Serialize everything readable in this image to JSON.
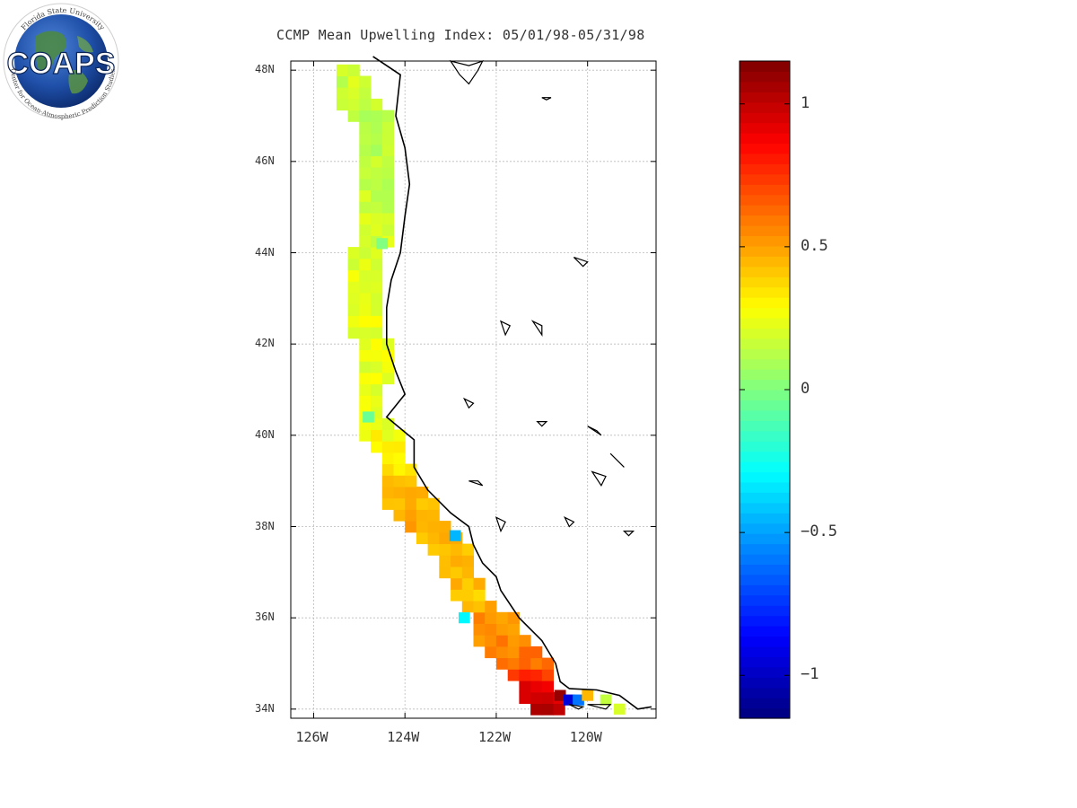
{
  "title": "CCMP Mean Upwelling Index: 05/01/98-05/31/98",
  "logo": {
    "text": "COAPS",
    "ring_top": "Florida State University",
    "ring_bottom": "Center for Ocean-Atmospheric Prediction Studies",
    "icon": "globe-icon"
  },
  "map": {
    "lat_range": [
      33.8,
      48.2
    ],
    "lon_range": [
      -126.5,
      -118.5
    ],
    "lat_ticks": [
      {
        "value": 34,
        "label": "34N"
      },
      {
        "value": 36,
        "label": "36N"
      },
      {
        "value": 38,
        "label": "38N"
      },
      {
        "value": 40,
        "label": "40N"
      },
      {
        "value": 42,
        "label": "42N"
      },
      {
        "value": 44,
        "label": "44N"
      },
      {
        "value": 46,
        "label": "46N"
      },
      {
        "value": 48,
        "label": "48N"
      }
    ],
    "lon_ticks": [
      {
        "value": -126,
        "label": "126W"
      },
      {
        "value": -124,
        "label": "124W"
      },
      {
        "value": -122,
        "label": "122W"
      },
      {
        "value": -120,
        "label": "120W"
      }
    ],
    "grid": true,
    "colors": {
      "coast": "#000000",
      "grid": "#bbbbbb",
      "frame": "#000000"
    }
  },
  "chart_data": {
    "type": "heatmap",
    "title": "CCMP Mean Upwelling Index: 05/01/98-05/31/98",
    "colorbar": {
      "range": [
        -1.15,
        1.15
      ],
      "ticks": [
        {
          "value": 1,
          "label": "1"
        },
        {
          "value": 0.5,
          "label": "0.5"
        },
        {
          "value": 0,
          "label": "0"
        },
        {
          "value": -0.5,
          "label": "−0.5"
        },
        {
          "value": -1,
          "label": "−1"
        }
      ],
      "colormap": "jet"
    },
    "coastal_band": [
      {
        "lat": 48.0,
        "lon_w": -125.6,
        "lon_e": -124.9,
        "value": 0.18
      },
      {
        "lat": 47.5,
        "lon_w": -125.6,
        "lon_e": -124.7,
        "value": 0.16
      },
      {
        "lat": 47.0,
        "lon_w": -125.2,
        "lon_e": -124.2,
        "value": 0.1
      },
      {
        "lat": 46.5,
        "lon_w": -125.0,
        "lon_e": -124.2,
        "value": 0.12
      },
      {
        "lat": 46.0,
        "lon_w": -124.9,
        "lon_e": -124.2,
        "value": 0.14
      },
      {
        "lat": 45.5,
        "lon_w": -124.9,
        "lon_e": -124.2,
        "value": 0.16
      },
      {
        "lat": 45.0,
        "lon_w": -124.9,
        "lon_e": -124.3,
        "value": 0.17
      },
      {
        "lat": 44.5,
        "lon_w": -124.9,
        "lon_e": -124.3,
        "value": 0.19
      },
      {
        "lat": 44.0,
        "lon_w": -125.2,
        "lon_e": -124.4,
        "value": 0.22
      },
      {
        "lat": 43.5,
        "lon_w": -125.3,
        "lon_e": -124.5,
        "value": 0.24
      },
      {
        "lat": 43.0,
        "lon_w": -125.3,
        "lon_e": -124.5,
        "value": 0.24
      },
      {
        "lat": 42.5,
        "lon_w": -125.3,
        "lon_e": -124.5,
        "value": 0.25
      },
      {
        "lat": 42.0,
        "lon_w": -125.0,
        "lon_e": -124.3,
        "value": 0.25
      },
      {
        "lat": 41.5,
        "lon_w": -125.0,
        "lon_e": -124.3,
        "value": 0.24
      },
      {
        "lat": 41.0,
        "lon_w": -125.0,
        "lon_e": -124.4,
        "value": 0.24
      },
      {
        "lat": 40.5,
        "lon_w": -125.0,
        "lon_e": -124.4,
        "value": 0.22
      },
      {
        "lat": 40.0,
        "lon_w": -125.0,
        "lon_e": -124.1,
        "value": 0.28
      },
      {
        "lat": 39.5,
        "lon_w": -124.6,
        "lon_e": -123.9,
        "value": 0.33
      },
      {
        "lat": 39.0,
        "lon_w": -124.5,
        "lon_e": -123.8,
        "value": 0.4
      },
      {
        "lat": 38.5,
        "lon_w": -124.4,
        "lon_e": -123.3,
        "value": 0.45
      },
      {
        "lat": 38.0,
        "lon_w": -124.0,
        "lon_e": -123.0,
        "value": 0.47
      },
      {
        "lat": 37.5,
        "lon_w": -123.5,
        "lon_e": -122.5,
        "value": 0.45
      },
      {
        "lat": 37.0,
        "lon_w": -123.2,
        "lon_e": -122.4,
        "value": 0.44
      },
      {
        "lat": 36.5,
        "lon_w": -122.9,
        "lon_e": -122.2,
        "value": 0.42
      },
      {
        "lat": 36.0,
        "lon_w": -122.5,
        "lon_e": -121.6,
        "value": 0.52
      },
      {
        "lat": 35.5,
        "lon_w": -122.4,
        "lon_e": -121.2,
        "value": 0.55
      },
      {
        "lat": 35.0,
        "lon_w": -122.0,
        "lon_e": -120.8,
        "value": 0.62
      },
      {
        "lat": 34.5,
        "lon_w": -121.5,
        "lon_e": -120.7,
        "value": 0.9
      },
      {
        "lat": 34.0,
        "lon_w": -121.3,
        "lon_e": -120.5,
        "value": 1.05
      }
    ],
    "anomaly_cells": [
      {
        "lat": 34.3,
        "lon": -120.6,
        "value": 1.1
      },
      {
        "lat": 34.2,
        "lon": -120.4,
        "value": -0.95
      },
      {
        "lat": 34.2,
        "lon": -120.2,
        "value": -0.6
      },
      {
        "lat": 34.3,
        "lon": -120.0,
        "value": 0.45
      },
      {
        "lat": 34.2,
        "lon": -119.6,
        "value": 0.15
      },
      {
        "lat": 34.0,
        "lon": -119.3,
        "value": 0.2
      },
      {
        "lat": 37.8,
        "lon": -122.9,
        "value": -0.45
      },
      {
        "lat": 36.0,
        "lon": -122.7,
        "value": -0.3
      },
      {
        "lat": 40.4,
        "lon": -124.8,
        "value": -0.05
      },
      {
        "lat": 44.2,
        "lon": -124.5,
        "value": 0.0
      }
    ]
  }
}
